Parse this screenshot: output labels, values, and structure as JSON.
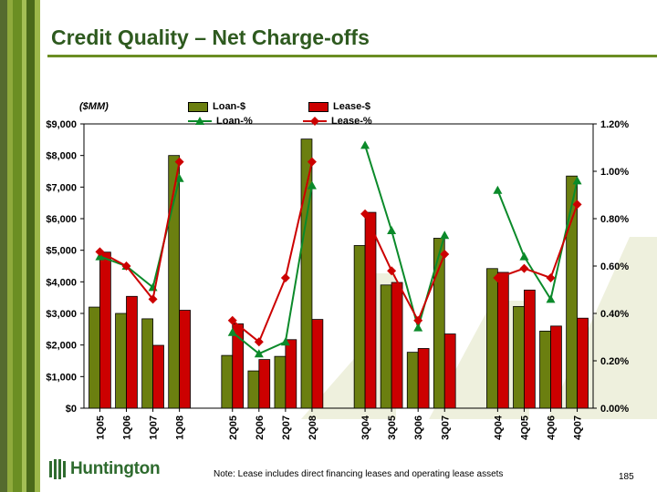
{
  "slide": {
    "title": "Credit Quality – Net Charge-offs",
    "unit_label": "($MM)",
    "note": "Note:  Lease includes direct financing leases and operating lease assets",
    "page_number": "185",
    "logo_text": "Huntington"
  },
  "colors": {
    "loan_bar": "#6b7f10",
    "lease_bar": "#cc0000",
    "loan_line": "#0b8a2a",
    "lease_line": "#cc0000",
    "title": "#2e5a1f"
  },
  "chart_data": {
    "type": "bar",
    "categories": [
      "1Q05",
      "1Q06",
      "1Q07",
      "1Q08",
      "2Q05",
      "2Q06",
      "2Q07",
      "2Q08",
      "3Q04",
      "3Q05",
      "3Q06",
      "3Q07",
      "4Q04",
      "4Q05",
      "4Q06",
      "4Q07"
    ],
    "groups": [
      4,
      4,
      4,
      4
    ],
    "series": [
      {
        "name": "Loan-$",
        "kind": "bar",
        "axis": "left",
        "values": [
          3200,
          3000,
          2830,
          8000,
          1670,
          1180,
          1640,
          8520,
          5150,
          3900,
          1770,
          5380,
          4420,
          3220,
          2440,
          7350
        ]
      },
      {
        "name": "Lease-$",
        "kind": "bar",
        "axis": "left",
        "values": [
          4940,
          3540,
          1990,
          3100,
          2670,
          1540,
          2170,
          2810,
          6200,
          3980,
          1890,
          2350,
          4300,
          3740,
          2600,
          2850
        ]
      },
      {
        "name": "Loan-%",
        "kind": "line",
        "marker": "triangle",
        "axis": "right",
        "values": [
          0.64,
          0.6,
          0.51,
          0.97,
          0.32,
          0.23,
          0.28,
          0.94,
          1.11,
          0.75,
          0.34,
          0.73,
          0.92,
          0.64,
          0.46,
          0.96
        ]
      },
      {
        "name": "Lease-%",
        "kind": "line",
        "marker": "diamond",
        "axis": "right",
        "values": [
          0.66,
          0.6,
          0.46,
          1.04,
          0.37,
          0.28,
          0.55,
          1.04,
          0.82,
          0.58,
          0.37,
          0.65,
          0.55,
          0.59,
          0.55,
          0.86
        ]
      }
    ],
    "left_axis": {
      "min": 0,
      "max": 9000,
      "step": 1000,
      "tick_labels": [
        "$0",
        "$1,000",
        "$2,000",
        "$3,000",
        "$4,000",
        "$5,000",
        "$6,000",
        "$7,000",
        "$8,000",
        "$9,000"
      ]
    },
    "right_axis": {
      "min": 0,
      "max": 1.2,
      "step": 0.2,
      "tick_labels": [
        "0.00%",
        "0.20%",
        "0.40%",
        "0.60%",
        "0.80%",
        "1.00%",
        "1.20%"
      ]
    },
    "legend": [
      {
        "name": "Loan-$",
        "type": "bar"
      },
      {
        "name": "Lease-$",
        "type": "bar"
      },
      {
        "name": "Loan-%",
        "type": "line"
      },
      {
        "name": "Lease-%",
        "type": "line"
      }
    ],
    "legend_position": "top"
  }
}
